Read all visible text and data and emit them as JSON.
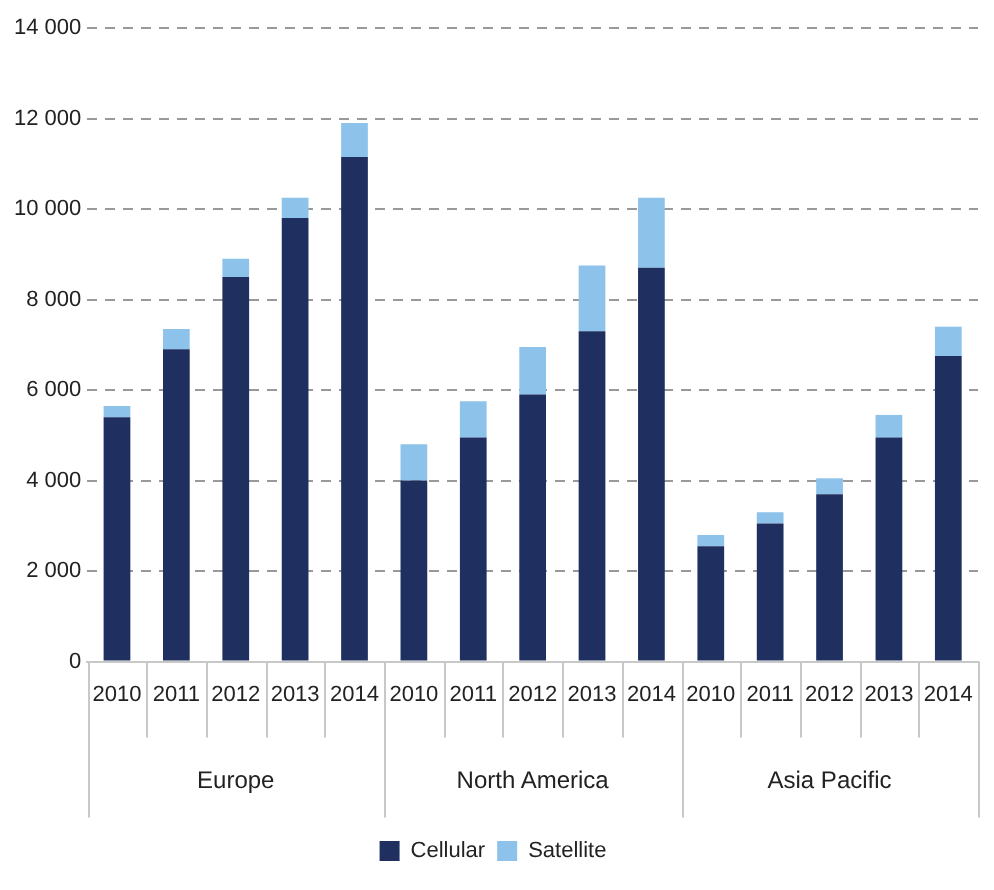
{
  "chart_data": {
    "type": "bar",
    "stacked": true,
    "categories": [
      "2010",
      "2011",
      "2012",
      "2013",
      "2014",
      "2010",
      "2011",
      "2012",
      "2013",
      "2014",
      "2010",
      "2011",
      "2012",
      "2013",
      "2014"
    ],
    "annotations": [
      "Europe",
      "North America",
      "Asia Pacific"
    ],
    "series": [
      {
        "name": "Cellular",
        "color": "#1f2f5f",
        "values": [
          5400,
          6900,
          8500,
          9800,
          11150,
          4000,
          4950,
          5900,
          7300,
          8700,
          2550,
          3050,
          3700,
          4950,
          6750
        ]
      },
      {
        "name": "Satellite",
        "color": "#8dc3ea",
        "values": [
          250,
          450,
          400,
          450,
          750,
          800,
          800,
          1050,
          1450,
          1550,
          250,
          250,
          350,
          500,
          650
        ]
      }
    ],
    "ylim": [
      0,
      14000
    ],
    "yticks": [
      {
        "value": 0,
        "label": "0"
      },
      {
        "value": 2000,
        "label": "2 000"
      },
      {
        "value": 4000,
        "label": "4 000"
      },
      {
        "value": 6000,
        "label": "6 000"
      },
      {
        "value": 8000,
        "label": "8 000"
      },
      {
        "value": 10000,
        "label": "10 000"
      },
      {
        "value": 12000,
        "label": "12 000"
      },
      {
        "value": 14000,
        "label": "14 000"
      }
    ],
    "grid": "y",
    "legend": "bottom"
  }
}
